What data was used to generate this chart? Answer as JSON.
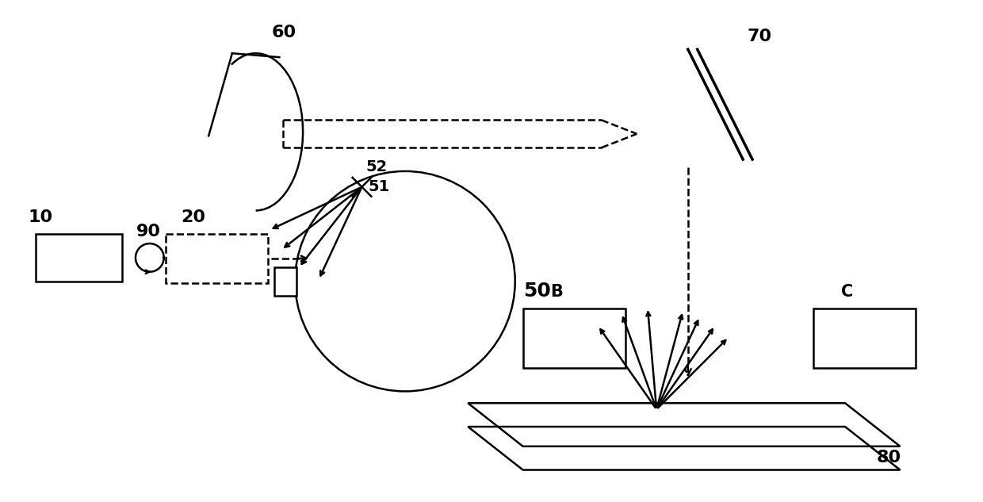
{
  "bg_color": "#ffffff",
  "line_color": "#000000",
  "fig_width": 12.4,
  "fig_height": 6.33
}
